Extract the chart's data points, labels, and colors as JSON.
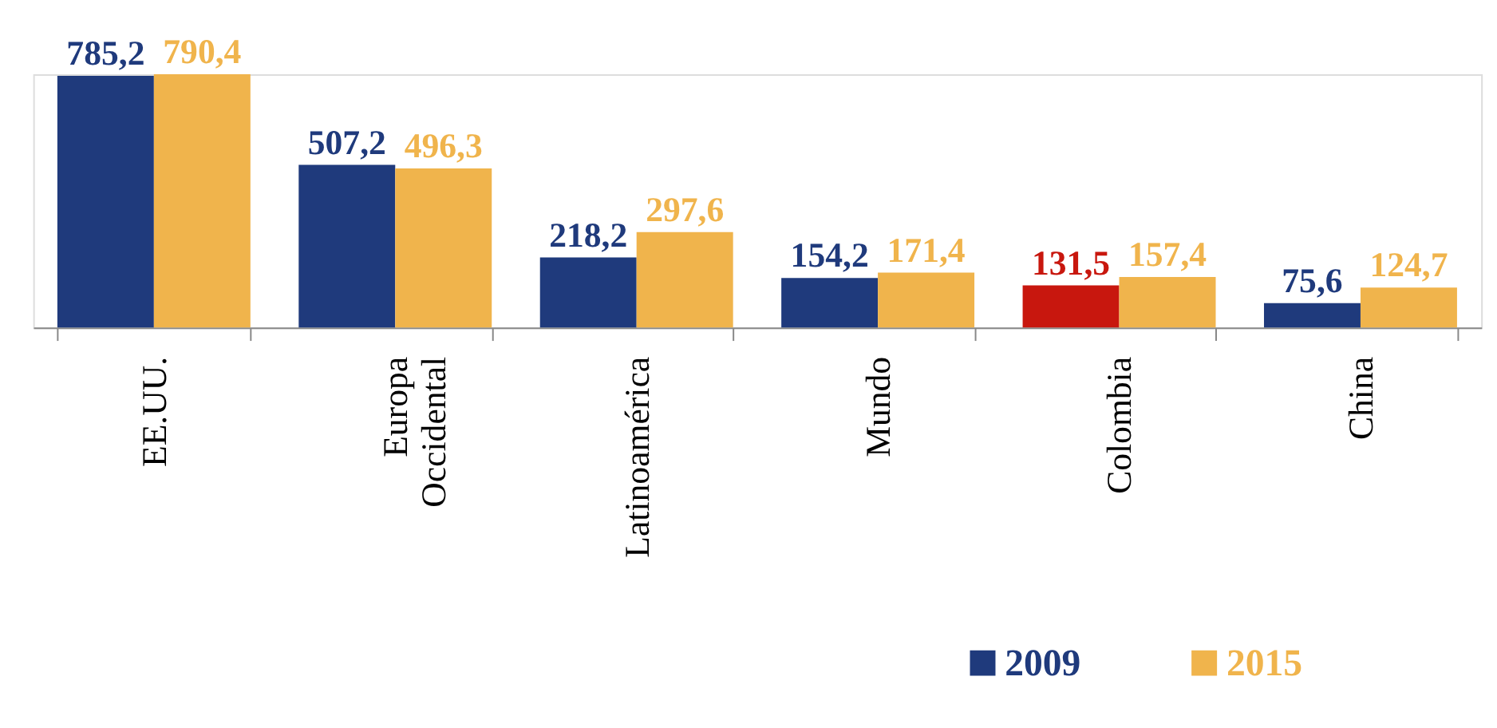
{
  "chart_data": {
    "type": "bar",
    "categories": [
      "EE.UU.",
      "Europa Occidental",
      "Latinoamérica",
      "Mundo",
      "Colombia",
      "China"
    ],
    "series": [
      {
        "name": "2009",
        "color": "#1f3a7c",
        "colors": [
          "#1f3a7c",
          "#1f3a7c",
          "#1f3a7c",
          "#1f3a7c",
          "#c8170e",
          "#1f3a7c"
        ],
        "values": [
          785.2,
          507.2,
          218.2,
          154.2,
          131.5,
          75.6
        ],
        "value_labels": [
          "785,2",
          "507,2",
          "218,2",
          "154,2",
          "131,5",
          "75,6"
        ]
      },
      {
        "name": "2015",
        "color": "#f0b44c",
        "values": [
          790.4,
          496.3,
          297.6,
          171.4,
          157.4,
          124.7
        ],
        "value_labels": [
          "790,4",
          "496,3",
          "297,6",
          "171,4",
          "157,4",
          "124,7"
        ]
      }
    ],
    "legend": "bottom right",
    "grid": false
  }
}
